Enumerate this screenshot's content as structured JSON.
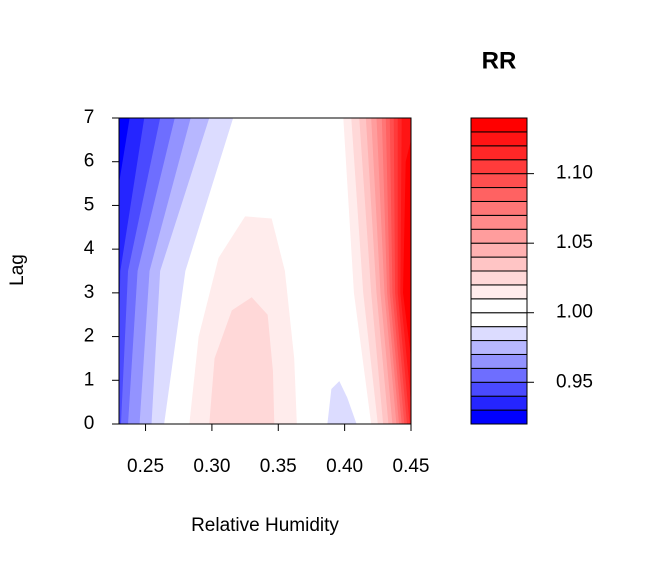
{
  "chart_data": {
    "type": "contour",
    "title": "RR",
    "xlabel": "Relative Humidity",
    "ylabel": "Lag",
    "xlim": [
      0.23,
      0.45
    ],
    "ylim": [
      0,
      7
    ],
    "xticks": [
      0.25,
      0.3,
      {
        "value": 0.3,
        "label": "0.30"
      },
      0.35,
      {
        "value": 0.4,
        "label": "0.40"
      },
      0.45
    ],
    "yticks": [
      0,
      1,
      2,
      3,
      4,
      5,
      6,
      7
    ],
    "levels": [
      0.92,
      0.93,
      0.94,
      0.95,
      0.96,
      0.97,
      0.98,
      0.99,
      1.0,
      1.01,
      1.02,
      1.03,
      1.04,
      1.05,
      1.06,
      1.07,
      1.08,
      1.09,
      1.1,
      1.11,
      1.12,
      1.13,
      1.14
    ],
    "colors": [
      "#0000FF",
      "#2525FF",
      "#4A4AFF",
      "#6E6EFF",
      "#9393FF",
      "#B7B7FF",
      "#DCDCFF",
      "#FFFFFF",
      "#FFFFFF",
      "#FFECEC",
      "#FFD8D8",
      "#FFC5C5",
      "#FFB1B1",
      "#FF9D9D",
      "#FF8A8A",
      "#FF7676",
      "#FF6262",
      "#FF4F4F",
      "#FF3B3B",
      "#FF2727",
      "#FF1414",
      "#FF0000"
    ],
    "colorbar_ticks": [
      0.95,
      {
        "value": 1,
        "label": "1.00"
      },
      1.05,
      {
        "value": 1.1,
        "label": "1.10"
      }
    ],
    "regions": [
      {
        "level": 0.98,
        "points": [
          [
            0.23,
            0
          ],
          [
            0.264,
            0
          ],
          [
            0.28,
            3.5
          ],
          [
            0.316,
            7
          ],
          [
            0.23,
            7
          ]
        ]
      },
      {
        "level": 0.97,
        "points": [
          [
            0.23,
            0
          ],
          [
            0.2545,
            0
          ],
          [
            0.261,
            3.5
          ],
          [
            0.298,
            7
          ],
          [
            0.23,
            7
          ]
        ]
      },
      {
        "level": 0.96,
        "points": [
          [
            0.23,
            0
          ],
          [
            0.2455,
            0
          ],
          [
            0.253,
            3.5
          ],
          [
            0.284,
            7
          ],
          [
            0.23,
            7
          ]
        ]
      },
      {
        "level": 0.95,
        "points": [
          [
            0.23,
            0
          ],
          [
            0.2368,
            0
          ],
          [
            0.244,
            3.5
          ],
          [
            0.272,
            7
          ],
          [
            0.23,
            7
          ]
        ]
      },
      {
        "level": 0.94,
        "points": [
          [
            0.23,
            0
          ],
          [
            0.2315,
            0
          ],
          [
            0.2368,
            3.5
          ],
          [
            0.261,
            7
          ],
          [
            0.23,
            7
          ]
        ]
      },
      {
        "level": 0.93,
        "points": [
          [
            0.23,
            2
          ],
          [
            0.231,
            3.5
          ],
          [
            0.249,
            7
          ],
          [
            0.23,
            7
          ]
        ]
      },
      {
        "level": 0.92,
        "points": [
          [
            0.23,
            5.5
          ],
          [
            0.238,
            7
          ],
          [
            0.23,
            7
          ]
        ]
      },
      {
        "level": 0.98,
        "points": [
          [
            0.387,
            0
          ],
          [
            0.39,
            0.8
          ],
          [
            0.396,
            0.98
          ],
          [
            0.402,
            0.6
          ],
          [
            0.409,
            0
          ]
        ]
      },
      {
        "level": 1.01,
        "points": [
          [
            0.283,
            0
          ],
          [
            0.29,
            2
          ],
          [
            0.305,
            3.8
          ],
          [
            0.325,
            4.75
          ],
          [
            0.345,
            4.7
          ],
          [
            0.355,
            3.5
          ],
          [
            0.362,
            1.5
          ],
          [
            0.364,
            0
          ]
        ]
      },
      {
        "level": 1.02,
        "points": [
          [
            0.298,
            0
          ],
          [
            0.302,
            1.5
          ],
          [
            0.315,
            2.6
          ],
          [
            0.33,
            2.9
          ],
          [
            0.342,
            2.5
          ],
          [
            0.346,
            1.2
          ],
          [
            0.347,
            0
          ]
        ]
      },
      {
        "level": 1.01,
        "points": [
          [
            0.45,
            0
          ],
          [
            0.42,
            0
          ],
          [
            0.407,
            3
          ],
          [
            0.399,
            7
          ],
          [
            0.45,
            7
          ]
        ]
      },
      {
        "level": 1.02,
        "points": [
          [
            0.45,
            0
          ],
          [
            0.425,
            0
          ],
          [
            0.414,
            3
          ],
          [
            0.405,
            7
          ],
          [
            0.45,
            7
          ]
        ]
      },
      {
        "level": 1.03,
        "points": [
          [
            0.45,
            0
          ],
          [
            0.429,
            0
          ],
          [
            0.42,
            3
          ],
          [
            0.411,
            7
          ],
          [
            0.45,
            7
          ]
        ]
      },
      {
        "level": 1.04,
        "points": [
          [
            0.45,
            0
          ],
          [
            0.433,
            0
          ],
          [
            0.424,
            3
          ],
          [
            0.416,
            7
          ],
          [
            0.45,
            7
          ]
        ]
      },
      {
        "level": 1.05,
        "points": [
          [
            0.45,
            0
          ],
          [
            0.436,
            0
          ],
          [
            0.427,
            3
          ],
          [
            0.42,
            7
          ],
          [
            0.45,
            7
          ]
        ]
      },
      {
        "level": 1.06,
        "points": [
          [
            0.45,
            0
          ],
          [
            0.439,
            0
          ],
          [
            0.43,
            3
          ],
          [
            0.424,
            7
          ],
          [
            0.45,
            7
          ]
        ]
      },
      {
        "level": 1.07,
        "points": [
          [
            0.45,
            0
          ],
          [
            0.441,
            0
          ],
          [
            0.432,
            3
          ],
          [
            0.428,
            7
          ],
          [
            0.45,
            7
          ]
        ]
      },
      {
        "level": 1.08,
        "points": [
          [
            0.45,
            0
          ],
          [
            0.443,
            0
          ],
          [
            0.434,
            3
          ],
          [
            0.431,
            7
          ],
          [
            0.45,
            7
          ]
        ]
      },
      {
        "level": 1.09,
        "points": [
          [
            0.45,
            0
          ],
          [
            0.445,
            0
          ],
          [
            0.436,
            3
          ],
          [
            0.434,
            7
          ],
          [
            0.45,
            7
          ]
        ]
      },
      {
        "level": 1.1,
        "points": [
          [
            0.45,
            0
          ],
          [
            0.447,
            0
          ],
          [
            0.438,
            3
          ],
          [
            0.437,
            7
          ],
          [
            0.45,
            7
          ]
        ]
      },
      {
        "level": 1.11,
        "points": [
          [
            0.45,
            0
          ],
          [
            0.449,
            0
          ],
          [
            0.44,
            3
          ],
          [
            0.44,
            7
          ],
          [
            0.45,
            7
          ]
        ]
      },
      {
        "level": 1.12,
        "points": [
          [
            0.45,
            0.5
          ],
          [
            0.442,
            3
          ],
          [
            0.443,
            7
          ],
          [
            0.45,
            7
          ]
        ]
      },
      {
        "level": 1.13,
        "points": [
          [
            0.45,
            1.5
          ],
          [
            0.444,
            3
          ],
          [
            0.446,
            6
          ],
          [
            0.45,
            6.5
          ]
        ]
      }
    ]
  }
}
